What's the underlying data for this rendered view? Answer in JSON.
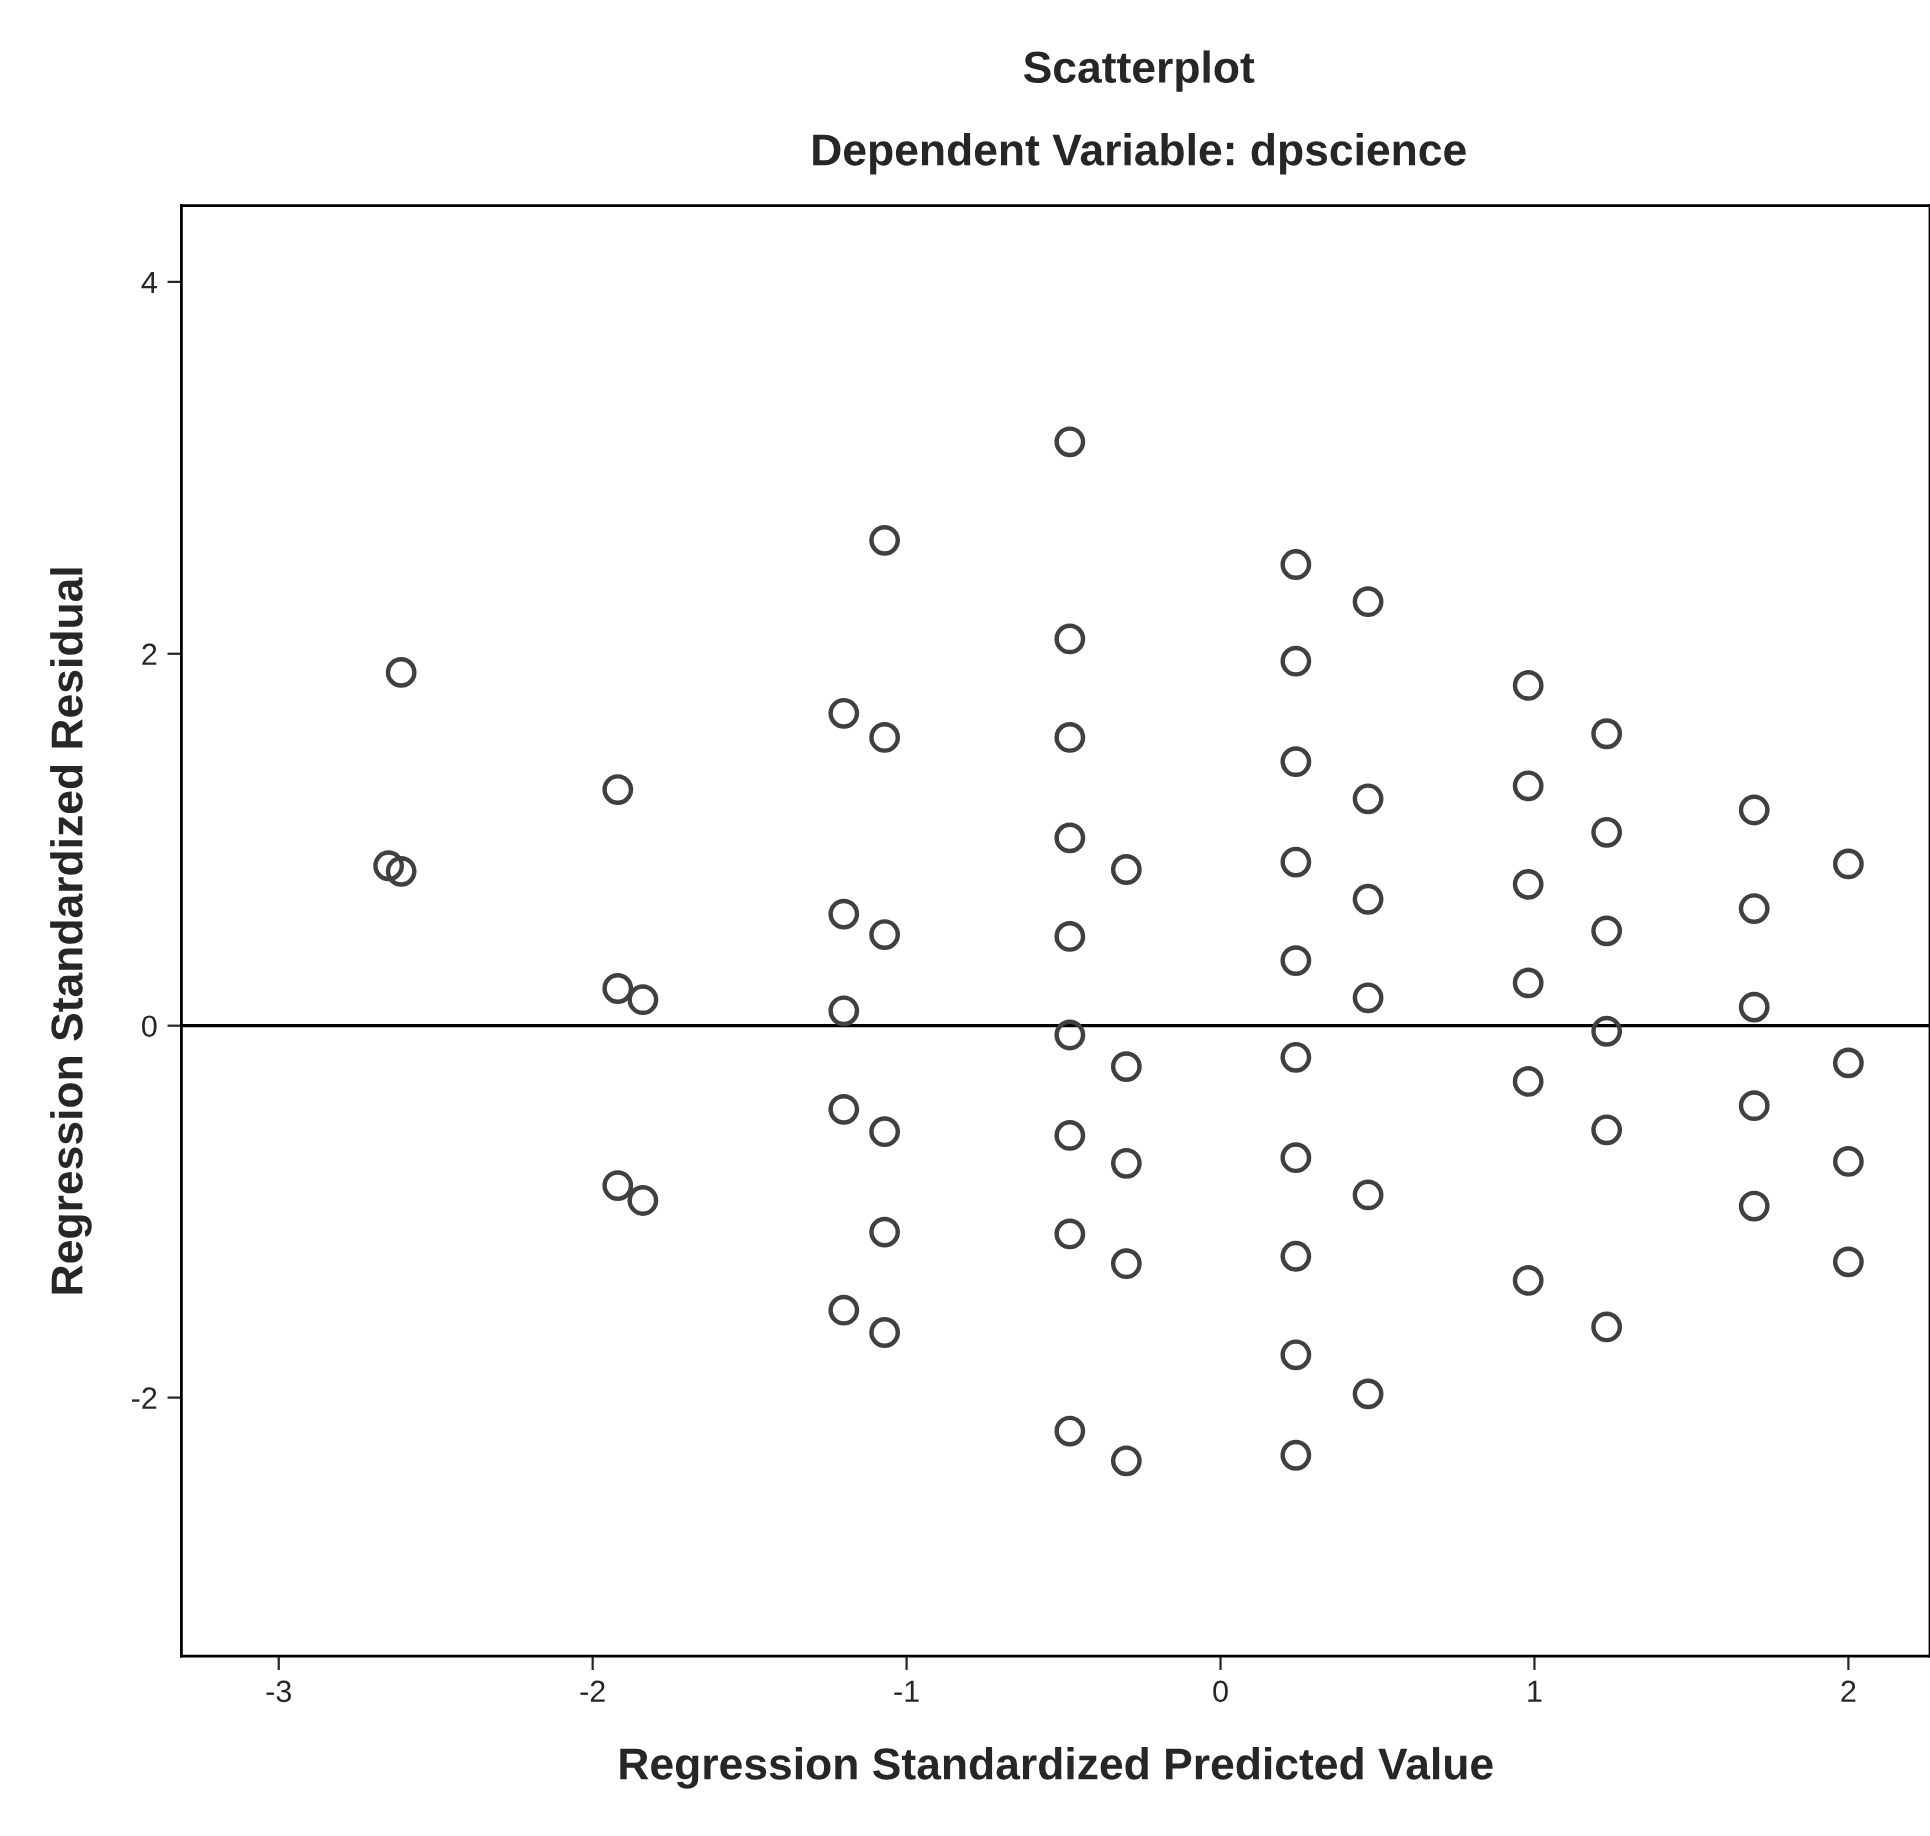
{
  "chart_data": {
    "type": "scatter",
    "title": "Scatterplot",
    "subtitle": "Dependent Variable: dpscience",
    "xlabel": "Regression Standardized Predicted Value",
    "ylabel": "Regression Standardized Residual",
    "x": [
      -2.61,
      -2.65,
      -2.61,
      -1.92,
      -1.92,
      -1.92,
      -1.84,
      -1.84,
      -1.2,
      -1.2,
      -1.2,
      -1.2,
      -1.2,
      -1.07,
      -1.07,
      -1.07,
      -1.07,
      -1.07,
      -1.07,
      -0.48,
      -0.48,
      -0.48,
      -0.48,
      -0.48,
      -0.48,
      -0.48,
      -0.48,
      -0.48,
      -0.3,
      -0.3,
      -0.3,
      -0.3,
      -0.3,
      0.24,
      0.24,
      0.24,
      0.24,
      0.24,
      0.24,
      0.24,
      0.24,
      0.24,
      0.24,
      0.47,
      0.47,
      0.47,
      0.47,
      0.47,
      0.47,
      0.98,
      0.98,
      0.98,
      0.98,
      0.98,
      0.98,
      1.23,
      1.23,
      1.23,
      1.23,
      1.23,
      1.23,
      1.7,
      1.7,
      1.7,
      1.7,
      1.7,
      2.0,
      2.0,
      2.0,
      2.0
    ],
    "series": [
      {
        "color": "#404040",
        "values": [
          1.9,
          0.86,
          0.83,
          1.27,
          0.2,
          -0.86,
          0.14,
          -0.94,
          0.08,
          1.68,
          0.6,
          -0.45,
          -1.53,
          2.61,
          1.55,
          0.49,
          -0.57,
          -1.11,
          -1.65,
          3.14,
          2.08,
          1.55,
          1.01,
          0.48,
          -0.05,
          -0.59,
          -1.12,
          -2.18,
          0.84,
          -0.22,
          -0.74,
          -1.28,
          -2.34,
          2.48,
          1.96,
          1.42,
          0.88,
          0.35,
          -0.17,
          -0.71,
          -1.24,
          -1.77,
          -2.31,
          2.28,
          1.22,
          0.68,
          0.15,
          -0.91,
          -1.98,
          1.83,
          1.29,
          0.76,
          0.23,
          -0.3,
          -1.37,
          1.57,
          1.04,
          0.51,
          -0.03,
          -0.56,
          -1.62,
          1.16,
          0.63,
          0.1,
          -0.43,
          -0.97,
          0.87,
          -0.2,
          -0.73,
          -1.27
        ]
      }
    ],
    "xlim": [
      -3.31,
      2.26
    ],
    "ylim": [
      -3.39,
      4.41
    ],
    "xticks": [
      -3,
      -2,
      -1,
      0,
      1,
      2
    ],
    "yticks": [
      -2,
      0,
      2,
      4
    ],
    "ref_lines": [
      {
        "axis": "y",
        "value": 0,
        "color": "#000000"
      }
    ],
    "marker": "circle",
    "grid": false,
    "legend": false
  }
}
